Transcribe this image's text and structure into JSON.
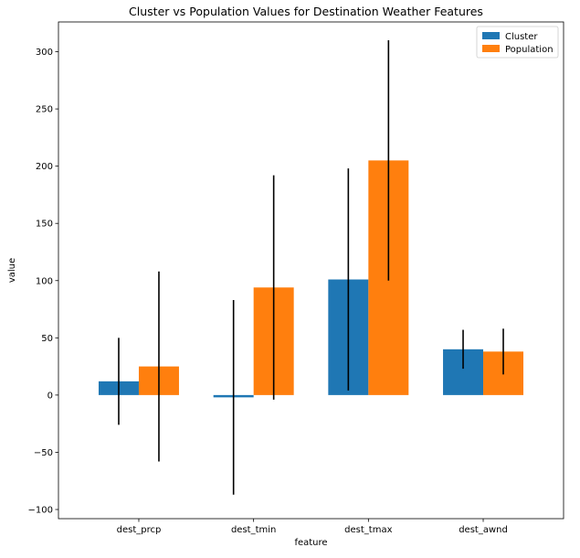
{
  "chart_data": {
    "type": "bar",
    "title": "Cluster vs Population Values for Destination Weather Features",
    "xlabel": "feature",
    "ylabel": "value",
    "categories": [
      "dest_prcp",
      "dest_tmin",
      "dest_tmax",
      "dest_awnd"
    ],
    "series": [
      {
        "name": "Cluster",
        "color": "#1f77b4",
        "values": [
          12,
          -2,
          101,
          40
        ],
        "errors": [
          38,
          85,
          97,
          17
        ]
      },
      {
        "name": "Population",
        "color": "#ff7f0e",
        "values": [
          25,
          94,
          205,
          38
        ],
        "errors": [
          83,
          98,
          105,
          20
        ]
      }
    ],
    "ylim": [
      -108,
      326
    ],
    "yticks": [
      -100,
      -50,
      0,
      50,
      100,
      150,
      200,
      250,
      300
    ],
    "ytick_labels": [
      "−100",
      "−50",
      "0",
      "50",
      "100",
      "150",
      "200",
      "250",
      "300"
    ],
    "legend": "top-right",
    "grid": false
  }
}
